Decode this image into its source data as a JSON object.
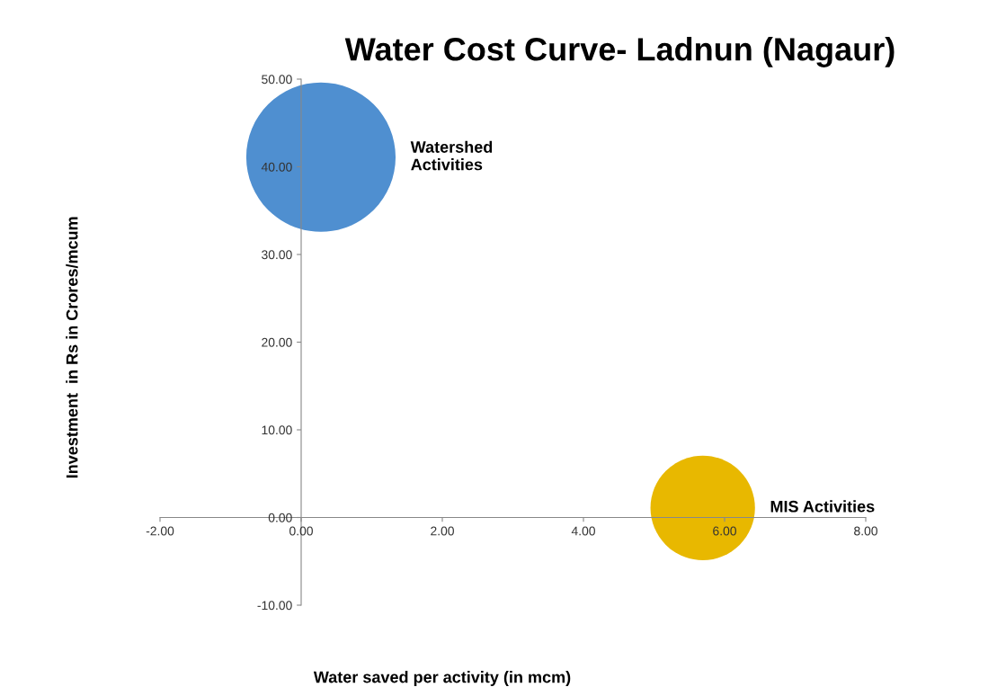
{
  "chart_data": {
    "type": "bubble",
    "title": "Water Cost Curve- Ladnun (Nagaur)",
    "xlabel": "Water saved per activity (in mcm)",
    "ylabel": "Investment  in Rs in Crores/mcum",
    "series": [
      {
        "name": "Watershed\nActivities",
        "color": "#4f8fd0",
        "x": [
          0.28
        ],
        "values": [
          41.1
        ],
        "sizes": [
          1
        ]
      },
      {
        "name": "MIS Activities",
        "color": "#e8b800",
        "x": [
          5.69
        ],
        "values": [
          1.1
        ],
        "sizes": [
          0.49
        ]
      }
    ],
    "xlim": [
      -2,
      8
    ],
    "ylim": [
      -10,
      50
    ],
    "xticks": [
      {
        "value": -2,
        "label": "-2.00"
      },
      {
        "value": 0,
        "label": "0.00"
      },
      {
        "value": 2,
        "label": "2.00"
      },
      {
        "value": 4,
        "label": "4.00"
      },
      {
        "value": 6,
        "label": "6.00"
      },
      {
        "value": 8,
        "label": "8.00"
      }
    ],
    "yticks": [
      {
        "value": -10,
        "label": "-10.00"
      },
      {
        "value": 0,
        "label": "0.00"
      },
      {
        "value": 10,
        "label": "10.00"
      },
      {
        "value": 20,
        "label": "20.00"
      },
      {
        "value": 30,
        "label": "30.00"
      },
      {
        "value": 40,
        "label": "40.00"
      },
      {
        "value": 50,
        "label": "50.00"
      }
    ],
    "grid": false,
    "legend": false
  }
}
